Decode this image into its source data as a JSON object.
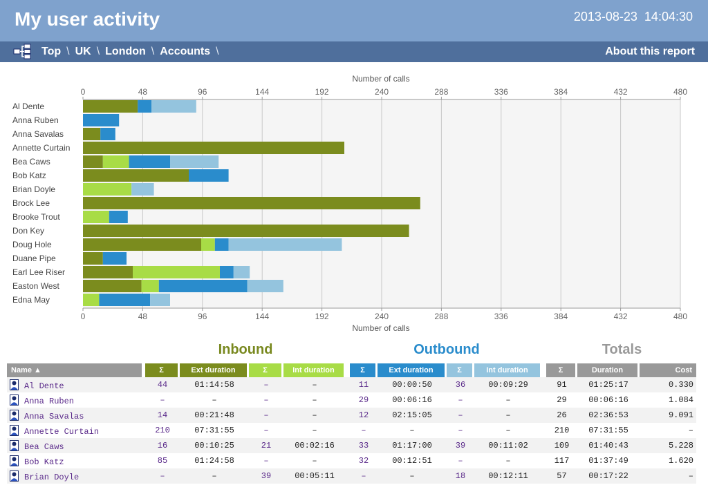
{
  "header": {
    "title": "My user activity",
    "datetime": "2013-08-23  14:04:30"
  },
  "nav": {
    "icon": "hierarchy-icon",
    "crumbs": [
      "Top",
      "UK",
      "London",
      "Accounts"
    ],
    "separator": "\\",
    "about": "About this report"
  },
  "colors": {
    "inbound_ext": "#7b8c1e",
    "inbound_int": "#a8dc46",
    "outbound_ext": "#2a8ccc",
    "outbound_int": "#94c4de",
    "totals": "#999999",
    "inbound_heading": "#78881e",
    "outbound_heading": "#2a8ccc",
    "totals_heading": "#999999"
  },
  "chart_data": {
    "type": "bar",
    "orientation": "horizontal",
    "stacked": true,
    "xlabel": "Number of calls",
    "xlim": [
      0,
      480
    ],
    "xticks": [
      0,
      48,
      96,
      144,
      192,
      240,
      288,
      336,
      384,
      432,
      480
    ],
    "grid": true,
    "categories": [
      "Al Dente",
      "Anna Ruben",
      "Anna Savalas",
      "Annette Curtain",
      "Bea Caws",
      "Bob Katz",
      "Brian Doyle",
      "Brock Lee",
      "Brooke Trout",
      "Don Key",
      "Doug Hole",
      "Duane Pipe",
      "Earl Lee Riser",
      "Easton West",
      "Edna May"
    ],
    "series": [
      {
        "color": "#7b8c1e",
        "values": [
          44,
          0,
          14,
          210,
          16,
          85,
          0,
          271,
          0,
          262,
          95,
          16,
          40,
          47,
          0
        ]
      },
      {
        "color": "#a8dc46",
        "values": [
          0,
          0,
          0,
          0,
          21,
          0,
          39,
          0,
          21,
          0,
          11,
          0,
          70,
          14,
          13
        ]
      },
      {
        "color": "#2a8ccc",
        "values": [
          11,
          29,
          12,
          0,
          33,
          32,
          0,
          0,
          15,
          0,
          11,
          19,
          11,
          71,
          41
        ]
      },
      {
        "color": "#94c4de",
        "values": [
          36,
          0,
          0,
          0,
          39,
          0,
          18,
          0,
          0,
          0,
          91,
          0,
          13,
          29,
          16
        ]
      }
    ]
  },
  "table": {
    "group_headings": {
      "inbound": "Inbound",
      "outbound": "Outbound",
      "totals": "Totals"
    },
    "headers": {
      "name": "Name ▲",
      "sigma": "Σ",
      "ext_duration": "Ext duration",
      "int_duration": "Int duration",
      "duration": "Duration",
      "cost": "Cost"
    },
    "user_icon": "user-icon",
    "rows": [
      {
        "name": "Al Dente",
        "in_ext_n": "44",
        "in_ext_d": "01:14:58",
        "in_int_n": "–",
        "in_int_d": "–",
        "out_ext_n": "11",
        "out_ext_d": "00:00:50",
        "out_int_n": "36",
        "out_int_d": "00:09:29",
        "tot_n": "91",
        "tot_d": "01:25:17",
        "cost": "0.330"
      },
      {
        "name": "Anna Ruben",
        "in_ext_n": "–",
        "in_ext_d": "–",
        "in_int_n": "–",
        "in_int_d": "–",
        "out_ext_n": "29",
        "out_ext_d": "00:06:16",
        "out_int_n": "–",
        "out_int_d": "–",
        "tot_n": "29",
        "tot_d": "00:06:16",
        "cost": "1.084"
      },
      {
        "name": "Anna Savalas",
        "in_ext_n": "14",
        "in_ext_d": "00:21:48",
        "in_int_n": "–",
        "in_int_d": "–",
        "out_ext_n": "12",
        "out_ext_d": "02:15:05",
        "out_int_n": "–",
        "out_int_d": "–",
        "tot_n": "26",
        "tot_d": "02:36:53",
        "cost": "9.091"
      },
      {
        "name": "Annette Curtain",
        "in_ext_n": "210",
        "in_ext_d": "07:31:55",
        "in_int_n": "–",
        "in_int_d": "–",
        "out_ext_n": "–",
        "out_ext_d": "–",
        "out_int_n": "–",
        "out_int_d": "–",
        "tot_n": "210",
        "tot_d": "07:31:55",
        "cost": "–"
      },
      {
        "name": "Bea Caws",
        "in_ext_n": "16",
        "in_ext_d": "00:10:25",
        "in_int_n": "21",
        "in_int_d": "00:02:16",
        "out_ext_n": "33",
        "out_ext_d": "01:17:00",
        "out_int_n": "39",
        "out_int_d": "00:11:02",
        "tot_n": "109",
        "tot_d": "01:40:43",
        "cost": "5.228"
      },
      {
        "name": "Bob Katz",
        "in_ext_n": "85",
        "in_ext_d": "01:24:58",
        "in_int_n": "–",
        "in_int_d": "–",
        "out_ext_n": "32",
        "out_ext_d": "00:12:51",
        "out_int_n": "–",
        "out_int_d": "–",
        "tot_n": "117",
        "tot_d": "01:37:49",
        "cost": "1.620"
      },
      {
        "name": "Brian Doyle",
        "in_ext_n": "–",
        "in_ext_d": "–",
        "in_int_n": "39",
        "in_int_d": "00:05:11",
        "out_ext_n": "–",
        "out_ext_d": "–",
        "out_int_n": "18",
        "out_int_d": "00:12:11",
        "tot_n": "57",
        "tot_d": "00:17:22",
        "cost": "–"
      }
    ]
  }
}
